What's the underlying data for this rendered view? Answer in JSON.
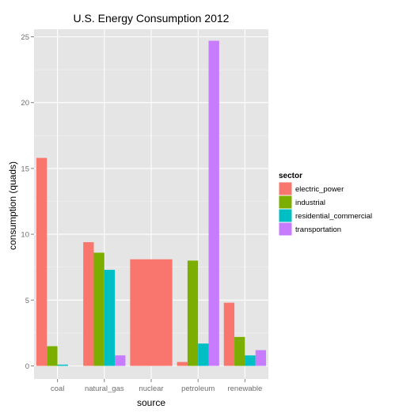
{
  "chart_data": {
    "type": "bar",
    "title": "U.S. Energy Consumption 2012",
    "xlabel": "source",
    "ylabel": "consumption (quads)",
    "categories": [
      "coal",
      "natural_gas",
      "nuclear",
      "petroleum",
      "renewable"
    ],
    "ylim": [
      0,
      26
    ],
    "yticks": [
      0,
      5,
      10,
      15,
      20,
      25
    ],
    "grid": true,
    "legend_position": "right",
    "legend_title": "sector",
    "series": [
      {
        "name": "electric_power",
        "color": "#F8766D",
        "values": [
          15.8,
          9.4,
          8.1,
          0.3,
          4.8
        ]
      },
      {
        "name": "industrial",
        "color": "#7CAE00",
        "values": [
          1.5,
          8.6,
          null,
          8.0,
          2.2
        ]
      },
      {
        "name": "residential_commercial",
        "color": "#00BFC4",
        "values": [
          0.1,
          7.3,
          null,
          1.7,
          0.8
        ]
      },
      {
        "name": "transportation",
        "color": "#C77CFF",
        "values": [
          0.0,
          0.8,
          null,
          24.7,
          1.2
        ]
      }
    ],
    "panel_color": "#E5E5E5",
    "grid_color": "#FFFFFF"
  }
}
